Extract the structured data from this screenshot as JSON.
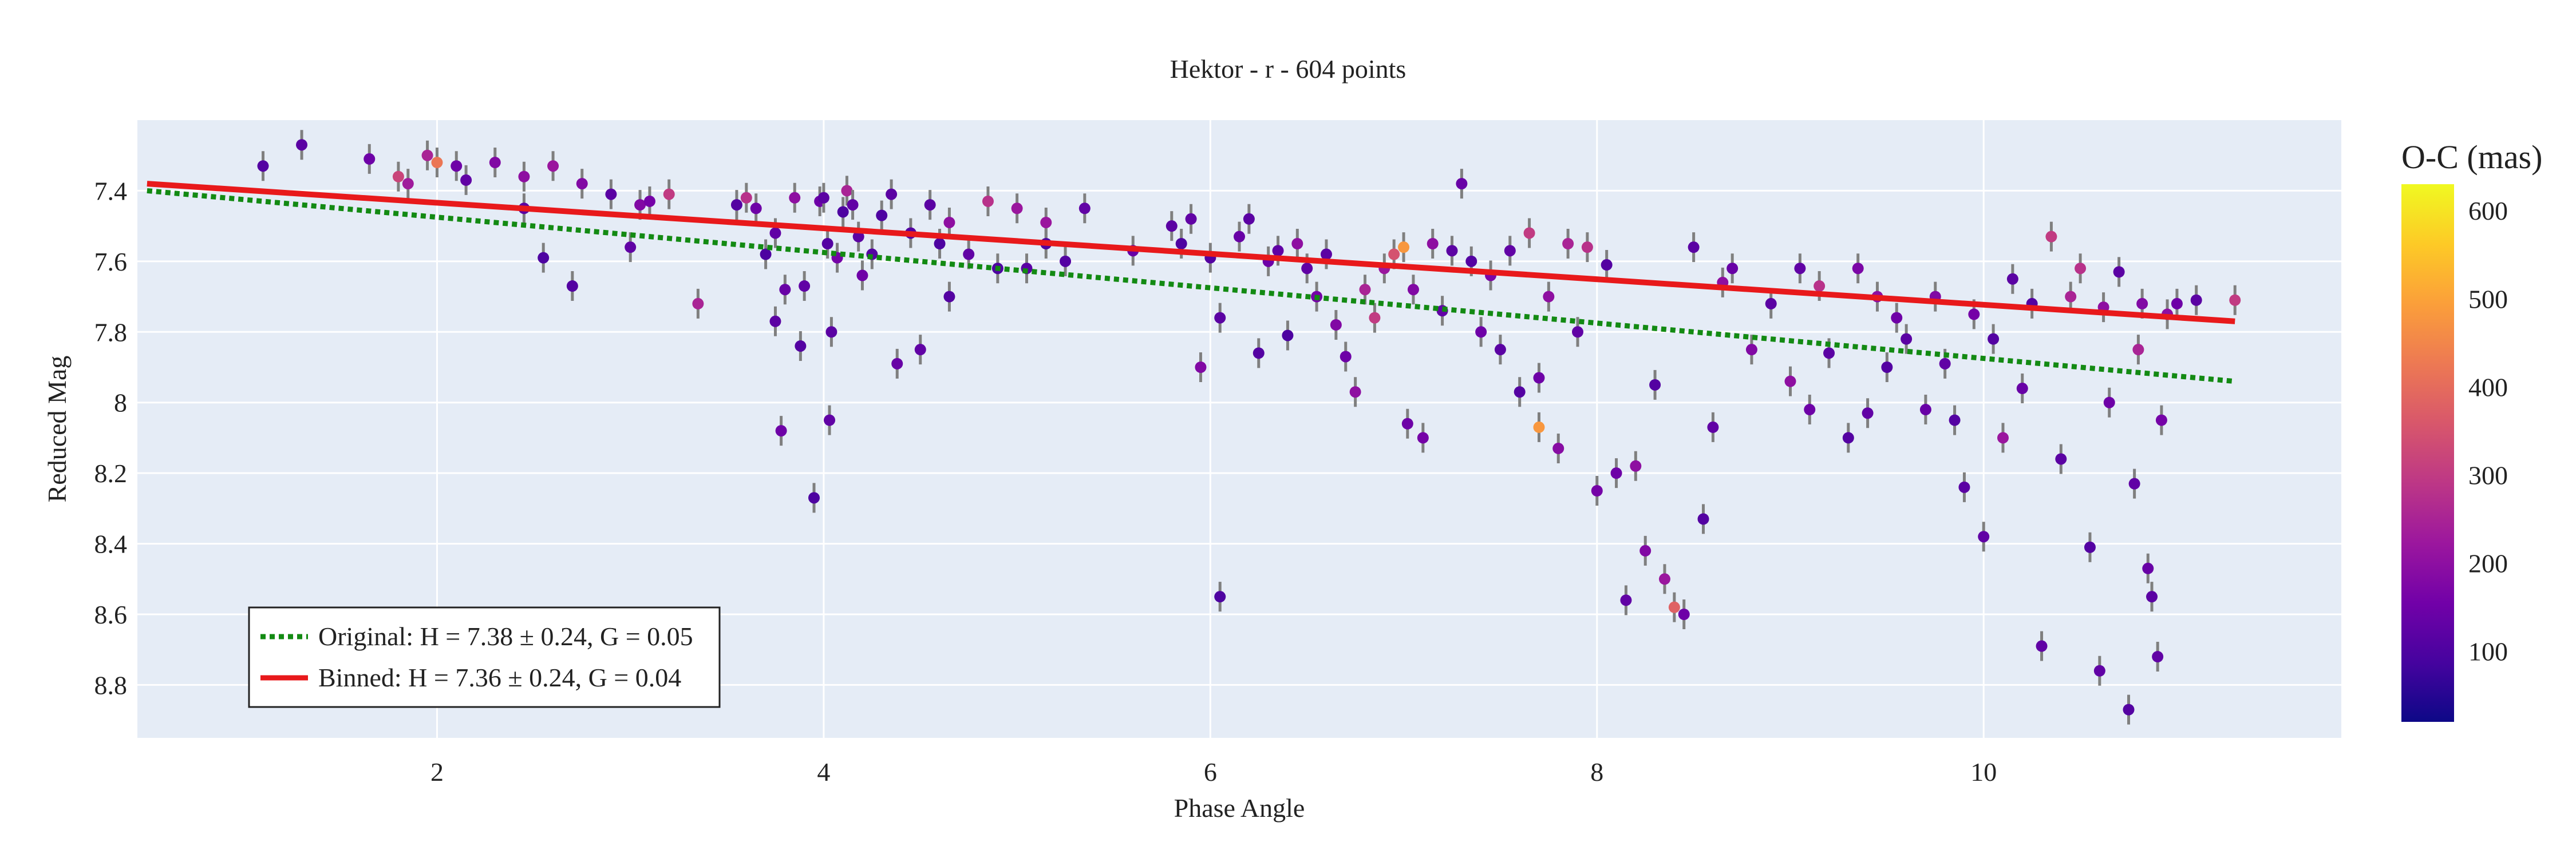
{
  "chart_data": {
    "type": "scatter",
    "title": "Hektor - r - 604 points",
    "xlabel": "Phase Angle",
    "ylabel": "Reduced Mag",
    "xlim": [
      0.45,
      11.85
    ],
    "ylim": [
      8.95,
      7.2
    ],
    "y_reversed": true,
    "x_ticks": [
      2,
      4,
      6,
      8,
      10
    ],
    "y_ticks": [
      7.4,
      7.6,
      7.8,
      8,
      8.2,
      8.4,
      8.6,
      8.8
    ],
    "x_tick_labels": [
      "2",
      "4",
      "6",
      "8",
      "10"
    ],
    "y_tick_labels": [
      "7.4",
      "7.6",
      "7.8",
      "8",
      "8.2",
      "8.4",
      "8.6",
      "8.8"
    ],
    "grid": true,
    "legend_position": "bottom-left",
    "colorbar": {
      "title": "O-C (mas)",
      "min": 20,
      "max": 630,
      "ticks": [
        100,
        200,
        300,
        400,
        500,
        600
      ],
      "tick_labels": [
        "100",
        "200",
        "300",
        "400",
        "500",
        "600"
      ],
      "colorscale": [
        "#0d0887",
        "#46039f",
        "#7201a8",
        "#9c179e",
        "#bd3786",
        "#d8576b",
        "#ed7953",
        "#fb9f3a",
        "#fdca26",
        "#f0f921"
      ]
    },
    "lines": [
      {
        "name": "Original: H = 7.38 ± 0.24, G = 0.05",
        "style": "dotted",
        "color": "#138a13",
        "x": [
          0.5,
          11.3
        ],
        "y": [
          7.4,
          7.94
        ]
      },
      {
        "name": "Binned: H = 7.36 ± 0.24, G = 0.04",
        "style": "solid",
        "color": "#e8191b",
        "x": [
          0.5,
          11.3
        ],
        "y": [
          7.38,
          7.77
        ]
      }
    ],
    "points_note": "Approximately 604 points read from the figure; a representative subset is listed",
    "points": [
      [
        1.1,
        7.33,
        110
      ],
      [
        1.3,
        7.27,
        120
      ],
      [
        1.65,
        7.31,
        150
      ],
      [
        1.8,
        7.36,
        320
      ],
      [
        1.85,
        7.38,
        230
      ],
      [
        1.95,
        7.3,
        250
      ],
      [
        2.0,
        7.32,
        420
      ],
      [
        2.1,
        7.33,
        150
      ],
      [
        2.15,
        7.37,
        130
      ],
      [
        2.3,
        7.32,
        180
      ],
      [
        2.45,
        7.36,
        200
      ],
      [
        2.45,
        7.45,
        120
      ],
      [
        2.55,
        7.59,
        100
      ],
      [
        2.6,
        7.33,
        220
      ],
      [
        2.7,
        7.67,
        110
      ],
      [
        2.75,
        7.38,
        180
      ],
      [
        2.9,
        7.41,
        120
      ],
      [
        3.0,
        7.56,
        130
      ],
      [
        3.05,
        7.44,
        180
      ],
      [
        3.1,
        7.43,
        160
      ],
      [
        3.2,
        7.41,
        300
      ],
      [
        3.35,
        7.72,
        250
      ],
      [
        3.55,
        7.44,
        110
      ],
      [
        3.6,
        7.42,
        280
      ],
      [
        3.65,
        7.45,
        150
      ],
      [
        3.7,
        7.58,
        100
      ],
      [
        3.75,
        7.52,
        130
      ],
      [
        3.75,
        7.77,
        120
      ],
      [
        3.78,
        8.08,
        150
      ],
      [
        3.8,
        7.68,
        140
      ],
      [
        3.85,
        7.42,
        200
      ],
      [
        3.88,
        7.84,
        110
      ],
      [
        3.9,
        7.67,
        130
      ],
      [
        3.95,
        8.27,
        100
      ],
      [
        3.98,
        7.43,
        150
      ],
      [
        4.0,
        7.42,
        120
      ],
      [
        4.02,
        7.55,
        110
      ],
      [
        4.03,
        8.05,
        130
      ],
      [
        4.04,
        7.8,
        120
      ],
      [
        4.07,
        7.59,
        160
      ],
      [
        4.1,
        7.46,
        100
      ],
      [
        4.12,
        7.4,
        250
      ],
      [
        4.15,
        7.44,
        130
      ],
      [
        4.18,
        7.53,
        120
      ],
      [
        4.2,
        7.64,
        150
      ],
      [
        4.25,
        7.58,
        110
      ],
      [
        4.3,
        7.47,
        100
      ],
      [
        4.35,
        7.41,
        120
      ],
      [
        4.38,
        7.89,
        140
      ],
      [
        4.45,
        7.52,
        110
      ],
      [
        4.5,
        7.85,
        130
      ],
      [
        4.55,
        7.44,
        120
      ],
      [
        4.6,
        7.55,
        100
      ],
      [
        4.65,
        7.7,
        110
      ],
      [
        4.65,
        7.49,
        200
      ],
      [
        4.75,
        7.58,
        130
      ],
      [
        4.85,
        7.43,
        280
      ],
      [
        4.9,
        7.62,
        100
      ],
      [
        5.0,
        7.45,
        220
      ],
      [
        5.05,
        7.62,
        120
      ],
      [
        5.15,
        7.55,
        100
      ],
      [
        5.15,
        7.49,
        220
      ],
      [
        5.25,
        7.6,
        110
      ],
      [
        5.35,
        7.45,
        130
      ],
      [
        5.6,
        7.57,
        140
      ],
      [
        5.8,
        7.5,
        120
      ],
      [
        5.85,
        7.55,
        100
      ],
      [
        5.9,
        7.48,
        130
      ],
      [
        5.95,
        7.9,
        180
      ],
      [
        6.0,
        7.59,
        110
      ],
      [
        6.05,
        7.76,
        120
      ],
      [
        6.05,
        8.55,
        100
      ],
      [
        6.15,
        7.53,
        140
      ],
      [
        6.2,
        7.48,
        120
      ],
      [
        6.25,
        7.86,
        110
      ],
      [
        6.3,
        7.6,
        150
      ],
      [
        6.35,
        7.57,
        130
      ],
      [
        6.4,
        7.81,
        100
      ],
      [
        6.45,
        7.55,
        200
      ],
      [
        6.5,
        7.62,
        130
      ],
      [
        6.55,
        7.7,
        160
      ],
      [
        6.6,
        7.58,
        120
      ],
      [
        6.65,
        7.78,
        180
      ],
      [
        6.7,
        7.87,
        150
      ],
      [
        6.75,
        7.97,
        200
      ],
      [
        6.8,
        7.68,
        250
      ],
      [
        6.85,
        7.76,
        300
      ],
      [
        6.9,
        7.62,
        220
      ],
      [
        6.95,
        7.58,
        350
      ],
      [
        7.0,
        7.56,
        480
      ],
      [
        7.02,
        8.06,
        150
      ],
      [
        7.05,
        7.68,
        180
      ],
      [
        7.1,
        8.1,
        160
      ],
      [
        7.15,
        7.55,
        200
      ],
      [
        7.2,
        7.74,
        130
      ],
      [
        7.25,
        7.57,
        120
      ],
      [
        7.3,
        7.38,
        140
      ],
      [
        7.35,
        7.6,
        110
      ],
      [
        7.4,
        7.8,
        150
      ],
      [
        7.45,
        7.64,
        170
      ],
      [
        7.5,
        7.85,
        120
      ],
      [
        7.55,
        7.57,
        130
      ],
      [
        7.6,
        7.97,
        110
      ],
      [
        7.65,
        7.52,
        300
      ],
      [
        7.7,
        7.93,
        150
      ],
      [
        7.7,
        8.07,
        480
      ],
      [
        7.75,
        7.7,
        200
      ],
      [
        7.8,
        8.13,
        190
      ],
      [
        7.85,
        7.55,
        250
      ],
      [
        7.9,
        7.8,
        130
      ],
      [
        7.95,
        7.56,
        280
      ],
      [
        8.0,
        8.25,
        160
      ],
      [
        8.05,
        7.61,
        110
      ],
      [
        8.1,
        8.2,
        150
      ],
      [
        8.15,
        8.56,
        130
      ],
      [
        8.2,
        8.18,
        200
      ],
      [
        8.25,
        8.42,
        180
      ],
      [
        8.3,
        7.95,
        110
      ],
      [
        8.35,
        8.5,
        220
      ],
      [
        8.4,
        8.58,
        380
      ],
      [
        8.45,
        8.6,
        150
      ],
      [
        8.5,
        7.56,
        120
      ],
      [
        8.55,
        8.33,
        110
      ],
      [
        8.6,
        8.07,
        130
      ],
      [
        8.65,
        7.66,
        200
      ],
      [
        8.7,
        7.62,
        140
      ],
      [
        8.8,
        7.85,
        180
      ],
      [
        8.9,
        7.72,
        120
      ],
      [
        9.0,
        7.94,
        200
      ],
      [
        9.05,
        7.62,
        130
      ],
      [
        9.1,
        8.02,
        150
      ],
      [
        9.15,
        7.67,
        280
      ],
      [
        9.2,
        7.86,
        120
      ],
      [
        9.3,
        8.1,
        110
      ],
      [
        9.35,
        7.62,
        170
      ],
      [
        9.4,
        8.03,
        130
      ],
      [
        9.45,
        7.7,
        200
      ],
      [
        9.5,
        7.9,
        110
      ],
      [
        9.55,
        7.76,
        150
      ],
      [
        9.6,
        7.82,
        120
      ],
      [
        9.7,
        8.02,
        140
      ],
      [
        9.75,
        7.7,
        180
      ],
      [
        9.8,
        7.89,
        130
      ],
      [
        9.85,
        8.05,
        110
      ],
      [
        9.9,
        8.24,
        120
      ],
      [
        9.95,
        7.75,
        160
      ],
      [
        10.0,
        8.38,
        130
      ],
      [
        10.05,
        7.82,
        110
      ],
      [
        10.1,
        8.1,
        220
      ],
      [
        10.15,
        7.65,
        120
      ],
      [
        10.2,
        7.96,
        140
      ],
      [
        10.25,
        7.72,
        110
      ],
      [
        10.3,
        8.69,
        130
      ],
      [
        10.35,
        7.53,
        300
      ],
      [
        10.4,
        8.16,
        120
      ],
      [
        10.45,
        7.7,
        250
      ],
      [
        10.5,
        7.62,
        280
      ],
      [
        10.55,
        8.41,
        110
      ],
      [
        10.6,
        8.76,
        130
      ],
      [
        10.62,
        7.73,
        200
      ],
      [
        10.65,
        8.0,
        150
      ],
      [
        10.7,
        7.63,
        120
      ],
      [
        10.75,
        8.87,
        110
      ],
      [
        10.78,
        8.23,
        130
      ],
      [
        10.8,
        7.85,
        250
      ],
      [
        10.82,
        7.72,
        180
      ],
      [
        10.85,
        8.47,
        140
      ],
      [
        10.87,
        8.55,
        120
      ],
      [
        10.9,
        8.72,
        130
      ],
      [
        10.92,
        8.05,
        160
      ],
      [
        10.95,
        7.75,
        200
      ],
      [
        11.0,
        7.72,
        150
      ],
      [
        11.1,
        7.71,
        120
      ],
      [
        11.3,
        7.71,
        300
      ]
    ]
  }
}
